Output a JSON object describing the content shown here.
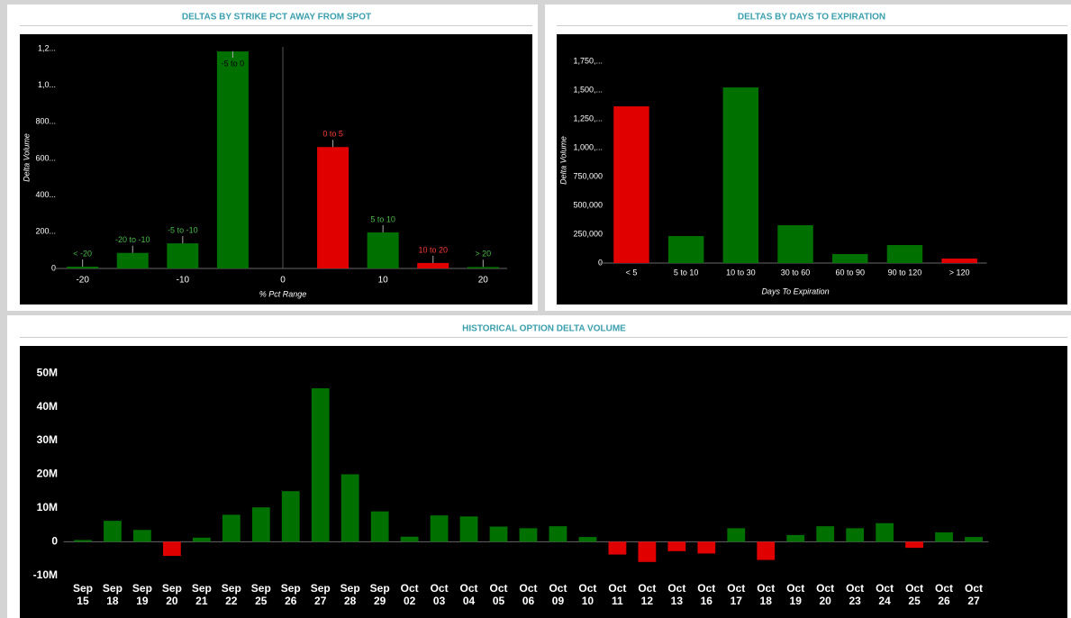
{
  "chart_data": [
    {
      "type": "bar",
      "title": "DELTAS BY STRIKE PCT AWAY FROM SPOT",
      "x_label": "% Pct Range",
      "y_label": "Delta Volume",
      "categories": [
        "< -20",
        "-20 to -10",
        "-5 to -10",
        "-5 to 0",
        "0 to 5",
        "5 to 10",
        "10 to 20",
        "> 20"
      ],
      "x": [
        -20,
        -15,
        -10,
        -5,
        5,
        10,
        15,
        20
      ],
      "values": [
        10,
        85,
        137,
        1185,
        663,
        197,
        30,
        8
      ],
      "colors": [
        "#007000",
        "#007000",
        "#007000",
        "#007000",
        "#e00000",
        "#007000",
        "#e00000",
        "#007000"
      ],
      "xlim": [
        -22.4,
        22.4
      ],
      "xticks": [
        -20,
        -10,
        0,
        10,
        20
      ],
      "ylim": [
        0,
        1210
      ],
      "yticks": [
        0,
        {
          "value": 200,
          "label": "200..."
        },
        {
          "value": 400,
          "label": "400..."
        },
        {
          "value": 600,
          "label": "600..."
        },
        {
          "value": 800,
          "label": "800..."
        },
        {
          "value": 1000,
          "label": "1,0..."
        },
        {
          "value": 1200,
          "label": "1,2..."
        }
      ]
    },
    {
      "type": "bar",
      "title": "DELTAS BY DAYS TO EXPIRATION",
      "x_label": "Days To Expiration",
      "y_label": "Delta Volume",
      "categories": [
        "< 5",
        "5 to 10",
        "10 to 30",
        "30 to 60",
        "60 to 90",
        "90 to 120",
        "> 120"
      ],
      "values": [
        1359000,
        234000,
        1523000,
        328000,
        78000,
        156000,
        39000
      ],
      "colors": [
        "#e00000",
        "#007000",
        "#007000",
        "#007000",
        "#007000",
        "#007000",
        "#e00000"
      ],
      "ylim": [
        0,
        1850000
      ],
      "yticks": [
        0,
        {
          "value": 250000,
          "label": "250,000"
        },
        {
          "value": 500000,
          "label": "500,000"
        },
        {
          "value": 750000,
          "label": "750,000"
        },
        {
          "value": 1000000,
          "label": "1,000,..."
        },
        {
          "value": 1250000,
          "label": "1,250,..."
        },
        {
          "value": 1500000,
          "label": "1,500,..."
        },
        {
          "value": 1750000,
          "label": "1,750,..."
        }
      ]
    },
    {
      "type": "bar",
      "title": "HISTORICAL OPTION DELTA VOLUME",
      "categories": [
        "Sep 15",
        "Sep 18",
        "Sep 19",
        "Sep 20",
        "Sep 21",
        "Sep 22",
        "Sep 25",
        "Sep 26",
        "Sep 27",
        "Sep 28",
        "Sep 29",
        "Oct 02",
        "Oct 03",
        "Oct 04",
        "Oct 05",
        "Oct 06",
        "Oct 09",
        "Oct 10",
        "Oct 11",
        "Oct 12",
        "Oct 13",
        "Oct 16",
        "Oct 17",
        "Oct 18",
        "Oct 19",
        "Oct 20",
        "Oct 23",
        "Oct 24",
        "Oct 25",
        "Oct 26",
        "Oct 27"
      ],
      "values": [
        500000,
        6200000,
        3500000,
        -4200000,
        1200000,
        8000000,
        10200000,
        15000000,
        45500000,
        20000000,
        9000000,
        1500000,
        7800000,
        7500000,
        4500000,
        4000000,
        4600000,
        1400000,
        -3800000,
        -6000000,
        -2800000,
        -3500000,
        4000000,
        -5400000,
        2000000,
        4600000,
        4000000,
        5500000,
        -1800000,
        2800000,
        1400000
      ],
      "color": "#007000",
      "negative_color": "#e00000",
      "ylim": [
        -13000000,
        52000000
      ],
      "yticks": [
        {
          "value": -10000000,
          "label": "-10M"
        },
        0,
        {
          "value": 10000000,
          "label": "10M"
        },
        {
          "value": 20000000,
          "label": "20M"
        },
        {
          "value": 30000000,
          "label": "30M"
        },
        {
          "value": 40000000,
          "label": "40M"
        },
        {
          "value": 50000000,
          "label": "50M"
        }
      ]
    }
  ]
}
